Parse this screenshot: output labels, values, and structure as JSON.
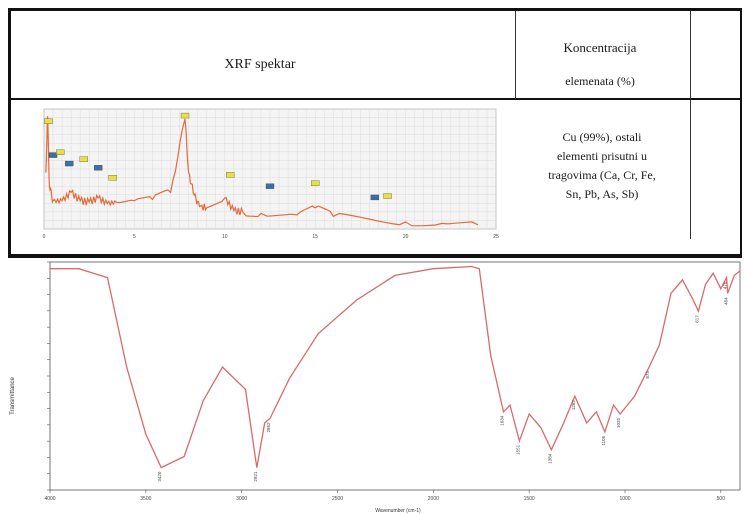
{
  "table": {
    "header_spectrum": "XRF spektar",
    "header_concentration_line1": "Koncentracija",
    "header_concentration_line2": "elemenata (%)",
    "concentration_text": [
      "Cu (99%), ostali",
      "elementi prisutni u",
      "tragovima (Ca, Cr, Fe,",
      "Sn, Pb, As, Sb)"
    ]
  },
  "chart_data": [
    {
      "type": "line",
      "x_ticks": [
        "0",
        "5",
        "10",
        "15",
        "20",
        "25"
      ],
      "xlim": [
        0,
        25
      ],
      "series": [
        {
          "x": [
            0.1,
            0.2,
            0.3,
            0.5,
            1.0,
            1.5,
            2.0,
            2.5,
            3.0,
            3.5,
            4.0,
            5.0,
            6.0,
            7.0,
            7.8,
            8.0,
            8.3,
            8.6,
            9.0,
            10.0,
            10.5,
            11.0,
            12.0,
            14.0,
            15.0,
            16.0,
            18.0,
            20.0,
            22.0,
            24.0
          ],
          "y": [
            4.0,
            8.0,
            3.0,
            2.0,
            2.0,
            2.6,
            2.0,
            1.9,
            2.2,
            1.8,
            1.9,
            2.0,
            2.1,
            2.6,
            7.8,
            4.0,
            2.4,
            1.6,
            1.5,
            2.2,
            1.3,
            1.2,
            1.1,
            1.0,
            1.5,
            0.9,
            0.7,
            0.5,
            0.4,
            0.3
          ]
        }
      ],
      "color": "#e46a3a"
    },
    {
      "type": "line",
      "xlabel": "Wavenumber (cm-1)",
      "ylabel": "Transmittance",
      "x_ticks": [
        "4000",
        "3500",
        "3000",
        "2500",
        "2000",
        "1500",
        "1000",
        "500"
      ],
      "xlim": [
        4000,
        400
      ],
      "annotations": [
        "3420",
        "2921",
        "2852",
        "1634",
        "1551",
        "1384",
        "1262",
        "1105",
        "1025",
        "874",
        "617",
        "470",
        "464"
      ],
      "series": [
        {
          "x": [
            4000,
            3850,
            3700,
            3600,
            3500,
            3420,
            3300,
            3200,
            3100,
            2980,
            2921,
            2880,
            2852,
            2750,
            2600,
            2400,
            2200,
            2000,
            1800,
            1760,
            1700,
            1634,
            1600,
            1551,
            1500,
            1440,
            1384,
            1320,
            1262,
            1200,
            1150,
            1105,
            1060,
            1025,
            950,
            874,
            820,
            760,
            700,
            650,
            617,
            580,
            540,
            500,
            470,
            464,
            430,
            400
          ],
          "y": [
            99,
            99,
            95,
            55,
            25,
            10,
            15,
            40,
            55,
            45,
            10,
            30,
            32,
            50,
            70,
            85,
            96,
            99,
            100,
            99,
            60,
            35,
            38,
            22,
            34,
            28,
            18,
            30,
            42,
            30,
            35,
            26,
            38,
            34,
            42,
            55,
            65,
            88,
            94,
            86,
            80,
            92,
            97,
            90,
            95,
            88,
            96,
            98
          ]
        }
      ],
      "color": "#d96a6a"
    }
  ]
}
